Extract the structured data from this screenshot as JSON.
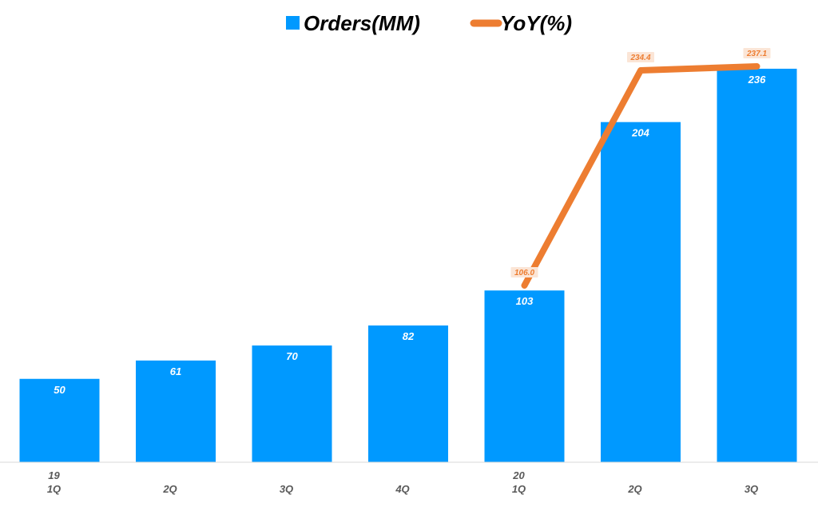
{
  "chart_data": {
    "type": "bar",
    "title": "",
    "categories": [
      "19 1Q",
      "2Q",
      "3Q",
      "4Q",
      "20 1Q",
      "2Q",
      "3Q"
    ],
    "category_labels": [
      {
        "year": "19",
        "quarter": "1Q"
      },
      {
        "year": "",
        "quarter": "2Q"
      },
      {
        "year": "",
        "quarter": "3Q"
      },
      {
        "year": "",
        "quarter": "4Q"
      },
      {
        "year": "20",
        "quarter": "1Q"
      },
      {
        "year": "",
        "quarter": "2Q"
      },
      {
        "year": "",
        "quarter": "3Q"
      }
    ],
    "series": [
      {
        "name": "Orders(MM)",
        "type": "bar",
        "color": "#0099FF",
        "values": [
          50,
          61,
          70,
          82,
          103,
          204,
          236
        ],
        "labels": [
          "50",
          "61",
          "70",
          "82",
          "103",
          "204",
          "236"
        ]
      },
      {
        "name": "YoY(%)",
        "type": "line",
        "color": "#ED7D31",
        "values": [
          null,
          null,
          null,
          null,
          106.0,
          234.4,
          237.1
        ],
        "labels": [
          "",
          "",
          "",
          "",
          "106.0",
          "234.4",
          "237.1"
        ]
      }
    ],
    "legend_position": "top-center",
    "grid": false,
    "y_axis_visible": false
  }
}
